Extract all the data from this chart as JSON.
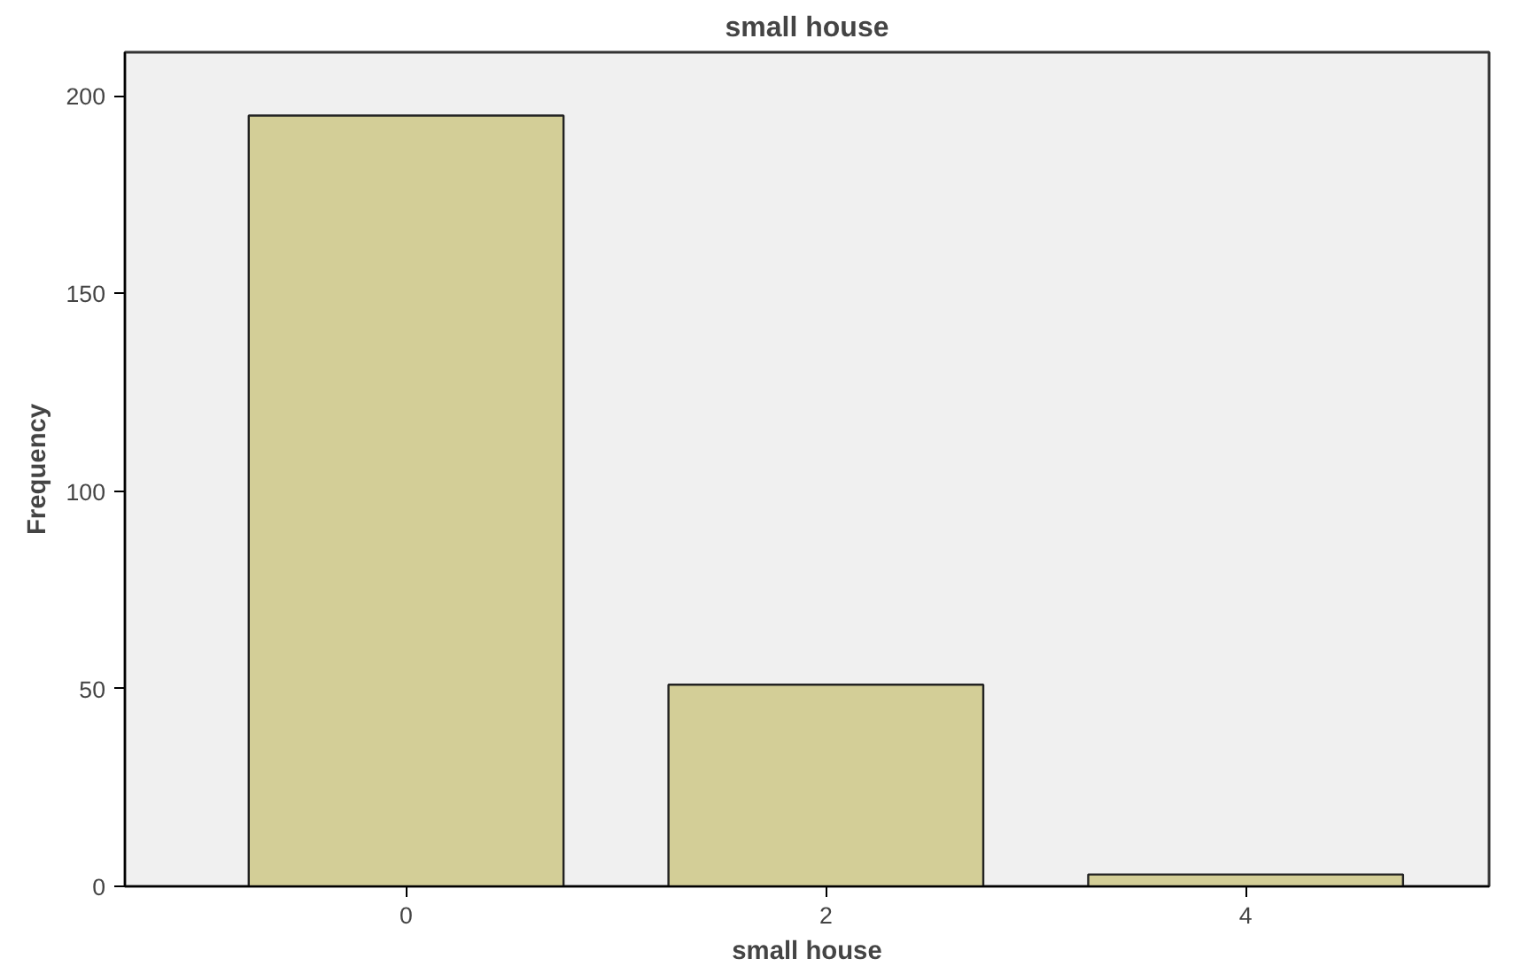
{
  "chart_data": {
    "type": "bar",
    "title": "small house",
    "xlabel": "small house",
    "ylabel": "Frequency",
    "categories": [
      "0",
      "2",
      "4"
    ],
    "series": [
      {
        "color": "#d3ce97",
        "values": [
          195,
          51,
          3
        ]
      }
    ],
    "ylim": [
      0,
      211
    ],
    "yticks": [
      0,
      50,
      100,
      150,
      200
    ],
    "grid": false
  }
}
